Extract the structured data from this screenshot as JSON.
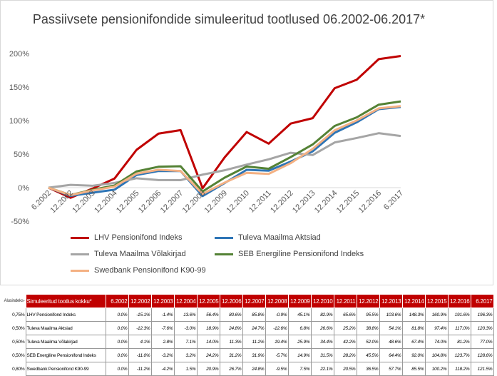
{
  "chart_data": {
    "type": "line",
    "title": "Passiivsete pensionifondide simuleeritud tootlused 06.2002-06.2017*",
    "categories": [
      "6.2002",
      "12.2002",
      "12.2003",
      "12.2004",
      "12.2005",
      "12.2006",
      "12.2007",
      "12.2008",
      "12.2009",
      "12.2010",
      "12.2011",
      "12.2012",
      "12.2013",
      "12.2014",
      "12.2015",
      "12.2016",
      "6.2017"
    ],
    "y_ticks": [
      "200%",
      "150%",
      "100%",
      "50%",
      "0%",
      "-50%"
    ],
    "ylim": [
      -50,
      200
    ],
    "grid": false,
    "legend": "bottom",
    "series": [
      {
        "name": "LHV Pensionifond Indeks",
        "color": "#c00000",
        "values": [
          0.0,
          -15.1,
          -1.4,
          13.6,
          56.4,
          80.6,
          85.8,
          -0.9,
          45.1,
          82.9,
          65.6,
          95.5,
          103.6,
          148.3,
          160.9,
          191.6,
          196.3
        ]
      },
      {
        "name": "Tuleva Maailma Aktsiad",
        "color": "#2e75b6",
        "values": [
          0.0,
          -12.3,
          -7.6,
          -3.0,
          18.9,
          24.8,
          24.7,
          -12.6,
          6.8,
          26.6,
          25.2,
          38.8,
          54.1,
          81.8,
          97.4,
          117.0,
          120.3
        ]
      },
      {
        "name": "Tuleva Maailma Võlakirjad",
        "color": "#a5a5a5",
        "values": [
          0.0,
          4.1,
          2.8,
          7.1,
          14.0,
          11.3,
          11.2,
          19.4,
          25.9,
          34.4,
          42.2,
          52.0,
          48.6,
          67.4,
          74.0,
          81.2,
          77.0
        ]
      },
      {
        "name": "SEB Energiline Pensionifond Indeks",
        "color": "#548235",
        "values": [
          0.0,
          -11.0,
          -3.2,
          3.2,
          24.2,
          31.2,
          31.9,
          -5.7,
          14.9,
          31.5,
          28.2,
          45.5,
          64.4,
          92.0,
          104.8,
          123.7,
          128.6
        ]
      },
      {
        "name": "Swedbank Pensionifond K90-99",
        "color": "#f4b183",
        "values": [
          0.0,
          -11.2,
          -4.2,
          1.5,
          20.9,
          26.7,
          24.8,
          -9.5,
          7.5,
          22.1,
          20.5,
          36.5,
          57.7,
          85.5,
          100.2,
          118.2,
          121.5
        ]
      }
    ]
  },
  "table": {
    "fee_header": "Alusindeks-",
    "name_header": "Simuleeritud tootlus kokku*",
    "rows": [
      {
        "fee": "0,75%",
        "name": "LHV Pensionifond Indeks",
        "cells": [
          "0.0%",
          "-15.1%",
          "-1.4%",
          "13.6%",
          "56.4%",
          "80.6%",
          "85.8%",
          "-0.9%",
          "45.1%",
          "82.9%",
          "65.6%",
          "95.5%",
          "103.6%",
          "148.3%",
          "160.9%",
          "191.6%",
          "196.3%"
        ]
      },
      {
        "fee": "0,50%",
        "name": "Tuleva Maailma Aktsiad",
        "cells": [
          "0.0%",
          "-12.3%",
          "-7.6%",
          "-3.0%",
          "18.9%",
          "24.8%",
          "24.7%",
          "-12.6%",
          "6.8%",
          "26.6%",
          "25.2%",
          "38.8%",
          "54.1%",
          "81.8%",
          "97.4%",
          "117.0%",
          "120.3%"
        ]
      },
      {
        "fee": "0,50%",
        "name": "Tuleva Maailma Võlakirjad",
        "cells": [
          "0.0%",
          "4.1%",
          "2.8%",
          "7.1%",
          "14.0%",
          "11.3%",
          "11.2%",
          "19.4%",
          "25.9%",
          "34.4%",
          "42.2%",
          "52.0%",
          "48.6%",
          "67.4%",
          "74.0%",
          "81.2%",
          "77.0%"
        ]
      },
      {
        "fee": "0,50%",
        "name": "SEB Energiline Pensionifond Indeks",
        "cells": [
          "0.0%",
          "-11.0%",
          "-3.2%",
          "3.2%",
          "24.2%",
          "31.2%",
          "31.9%",
          "-5.7%",
          "14.9%",
          "31.5%",
          "28.2%",
          "45.5%",
          "64.4%",
          "92.0%",
          "104.8%",
          "123.7%",
          "128.6%"
        ]
      },
      {
        "fee": "0,80%",
        "name": "Swedbank Pensionifond K90-99",
        "cells": [
          "0.0%",
          "-11.2%",
          "-4.2%",
          "1.5%",
          "20.9%",
          "26.7%",
          "24.8%",
          "-9.5%",
          "7.5%",
          "22.1%",
          "20.5%",
          "36.5%",
          "57.7%",
          "85.5%",
          "100.2%",
          "118.2%",
          "121.5%"
        ]
      }
    ]
  }
}
